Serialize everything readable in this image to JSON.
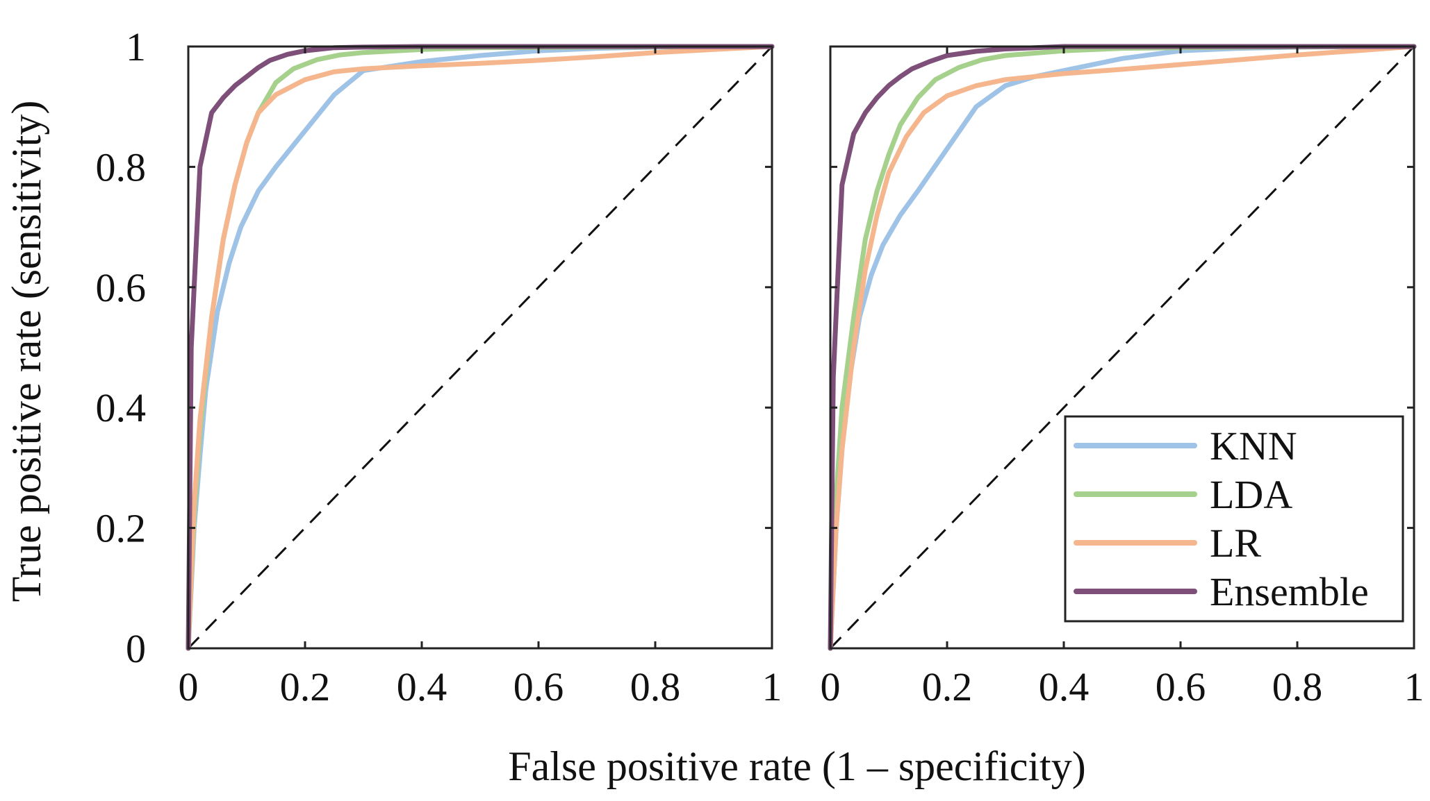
{
  "colors": {
    "KNN": "#9fc3e6",
    "LDA": "#a5d18c",
    "LR": "#f5b68e",
    "Ensemble": "#7d4f79",
    "axis": "#222222",
    "diagonal": "#111111"
  },
  "figure": {
    "ylabel": "True positive rate (sensitivity)",
    "xlabel": "False positive rate (1 – specificity)"
  },
  "chart_data": [
    {
      "type": "line",
      "title": "",
      "xlabel": "False positive rate (1 – specificity)",
      "ylabel": "True positive rate (sensitivity)",
      "xlim": [
        0,
        1
      ],
      "ylim": [
        0,
        1
      ],
      "grid": false,
      "x_ticks": [
        0,
        0.2,
        0.4,
        0.6,
        0.8,
        1
      ],
      "x_tick_labels": [
        "0",
        "0.2",
        "0.4",
        "0.6",
        "0.8",
        "1"
      ],
      "y_ticks": [
        0,
        0.2,
        0.4,
        0.6,
        0.8,
        1
      ],
      "y_tick_labels": [
        "0",
        "0.2",
        "0.4",
        "0.6",
        "0.8",
        "1"
      ],
      "reference_line": {
        "style": "dashed",
        "x": [
          0,
          1
        ],
        "y": [
          0,
          1
        ]
      },
      "series": [
        {
          "name": "KNN",
          "color": "#9fc3e6",
          "x": [
            0,
            0.01,
            0.02,
            0.03,
            0.05,
            0.07,
            0.09,
            0.12,
            0.15,
            0.2,
            0.25,
            0.3,
            0.4,
            0.5,
            0.6,
            0.7,
            0.8,
            0.9,
            1.0
          ],
          "y": [
            0,
            0.2,
            0.32,
            0.43,
            0.56,
            0.64,
            0.7,
            0.76,
            0.8,
            0.86,
            0.92,
            0.96,
            0.975,
            0.985,
            0.993,
            0.997,
            0.999,
            1.0,
            1.0
          ]
        },
        {
          "name": "LDA",
          "color": "#a5d18c",
          "x": [
            0,
            0.01,
            0.02,
            0.04,
            0.06,
            0.08,
            0.1,
            0.12,
            0.15,
            0.18,
            0.22,
            0.26,
            0.3,
            0.4,
            0.5,
            0.7,
            1.0
          ],
          "y": [
            0,
            0.22,
            0.36,
            0.55,
            0.68,
            0.77,
            0.84,
            0.89,
            0.94,
            0.963,
            0.978,
            0.986,
            0.99,
            0.995,
            0.998,
            0.999,
            1.0
          ]
        },
        {
          "name": "LR",
          "color": "#f5b68e",
          "x": [
            0,
            0.01,
            0.02,
            0.04,
            0.06,
            0.08,
            0.1,
            0.12,
            0.15,
            0.2,
            0.25,
            0.3,
            0.4,
            0.5,
            0.6,
            0.7,
            0.8,
            0.9,
            1.0
          ],
          "y": [
            0,
            0.24,
            0.38,
            0.55,
            0.68,
            0.77,
            0.84,
            0.89,
            0.92,
            0.945,
            0.958,
            0.963,
            0.968,
            0.972,
            0.977,
            0.983,
            0.99,
            0.995,
            1.0
          ]
        },
        {
          "name": "Ensemble",
          "color": "#7d4f79",
          "x": [
            0,
            0.005,
            0.02,
            0.04,
            0.06,
            0.08,
            0.1,
            0.12,
            0.14,
            0.17,
            0.2,
            0.25,
            0.3,
            0.4,
            0.6,
            1.0
          ],
          "y": [
            0,
            0.5,
            0.8,
            0.89,
            0.915,
            0.935,
            0.95,
            0.965,
            0.977,
            0.987,
            0.993,
            0.998,
            0.999,
            1.0,
            1.0,
            1.0
          ]
        }
      ]
    },
    {
      "type": "line",
      "title": "",
      "xlabel": "False positive rate (1 – specificity)",
      "ylabel": "",
      "xlim": [
        0,
        1
      ],
      "ylim": [
        0,
        1
      ],
      "grid": false,
      "x_ticks": [
        0,
        0.2,
        0.4,
        0.6,
        0.8,
        1
      ],
      "x_tick_labels": [
        "0",
        "0.2",
        "0.4",
        "0.6",
        "0.8",
        "1"
      ],
      "y_ticks": [
        0,
        0.2,
        0.4,
        0.6,
        0.8,
        1
      ],
      "reference_line": {
        "style": "dashed",
        "x": [
          0,
          1
        ],
        "y": [
          0,
          1
        ]
      },
      "legend": {
        "position": "bottom-right",
        "entries": [
          "KNN",
          "LDA",
          "LR",
          "Ensemble"
        ]
      },
      "series": [
        {
          "name": "KNN",
          "color": "#9fc3e6",
          "x": [
            0,
            0.01,
            0.02,
            0.03,
            0.05,
            0.07,
            0.09,
            0.12,
            0.15,
            0.2,
            0.25,
            0.3,
            0.35,
            0.4,
            0.5,
            0.6,
            0.7,
            0.8,
            0.9,
            1.0
          ],
          "y": [
            0,
            0.2,
            0.33,
            0.43,
            0.55,
            0.62,
            0.67,
            0.72,
            0.76,
            0.83,
            0.9,
            0.935,
            0.95,
            0.96,
            0.98,
            0.993,
            0.997,
            0.999,
            1.0,
            1.0
          ]
        },
        {
          "name": "LDA",
          "color": "#a5d18c",
          "x": [
            0,
            0.01,
            0.02,
            0.04,
            0.06,
            0.08,
            0.1,
            0.12,
            0.15,
            0.18,
            0.22,
            0.26,
            0.3,
            0.4,
            0.5,
            0.7,
            1.0
          ],
          "y": [
            0,
            0.25,
            0.4,
            0.55,
            0.68,
            0.76,
            0.82,
            0.87,
            0.915,
            0.945,
            0.965,
            0.978,
            0.985,
            0.993,
            0.997,
            0.999,
            1.0
          ]
        },
        {
          "name": "LR",
          "color": "#f5b68e",
          "x": [
            0,
            0.01,
            0.02,
            0.04,
            0.06,
            0.08,
            0.1,
            0.13,
            0.16,
            0.2,
            0.25,
            0.3,
            0.4,
            0.5,
            0.6,
            0.7,
            0.8,
            0.9,
            1.0
          ],
          "y": [
            0,
            0.2,
            0.33,
            0.5,
            0.63,
            0.72,
            0.79,
            0.85,
            0.89,
            0.918,
            0.935,
            0.945,
            0.955,
            0.962,
            0.97,
            0.978,
            0.986,
            0.993,
            1.0
          ]
        },
        {
          "name": "Ensemble",
          "color": "#7d4f79",
          "x": [
            0,
            0.005,
            0.02,
            0.04,
            0.06,
            0.08,
            0.1,
            0.12,
            0.14,
            0.17,
            0.2,
            0.25,
            0.3,
            0.35,
            0.4,
            0.6,
            1.0
          ],
          "y": [
            0,
            0.45,
            0.77,
            0.855,
            0.89,
            0.915,
            0.935,
            0.95,
            0.963,
            0.975,
            0.985,
            0.992,
            0.996,
            0.998,
            1.0,
            1.0,
            1.0
          ]
        }
      ]
    }
  ]
}
